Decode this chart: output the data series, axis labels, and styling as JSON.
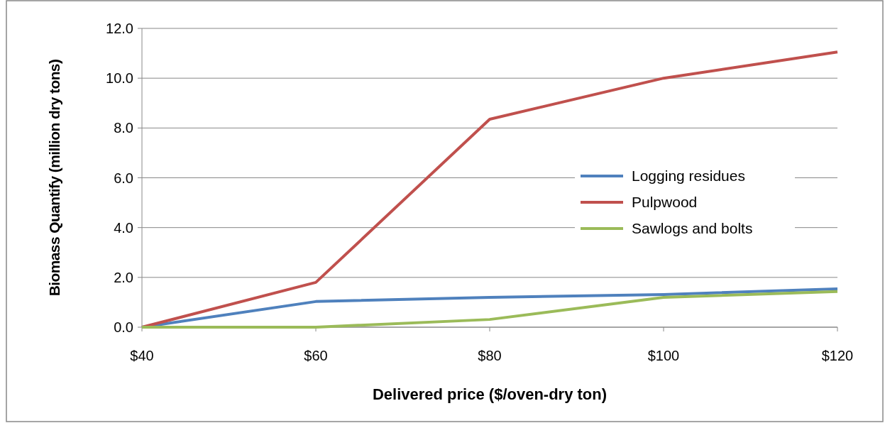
{
  "chart_data": {
    "type": "line",
    "xlabel": "Delivered price ($/oven-dry ton)",
    "ylabel": "Biomass Quantify (million dry tons)",
    "x": [
      40,
      60,
      80,
      100,
      120
    ],
    "series": [
      {
        "name": "Logging residues",
        "color": "#4f81bd",
        "values": [
          0,
          1.03,
          1.2,
          1.31,
          1.54
        ]
      },
      {
        "name": "Pulpwood",
        "color": "#c0504d",
        "values": [
          0,
          1.8,
          8.35,
          10.0,
          11.05
        ]
      },
      {
        "name": "Sawlogs and bolts",
        "color": "#9bbb59",
        "values": [
          0,
          0,
          0.31,
          1.2,
          1.43
        ]
      }
    ],
    "xlim": [
      40,
      120
    ],
    "xticks": [
      {
        "value": 40,
        "label": "$40"
      },
      {
        "value": 60,
        "label": "$60"
      },
      {
        "value": 80,
        "label": "$80"
      },
      {
        "value": 100,
        "label": "$100"
      },
      {
        "value": 120,
        "label": "$120"
      }
    ],
    "ylim": [
      0,
      12
    ],
    "yticks": [
      {
        "value": 0,
        "label": "0.0"
      },
      {
        "value": 2,
        "label": "2.0"
      },
      {
        "value": 4,
        "label": "4.0"
      },
      {
        "value": 6,
        "label": "6.0"
      },
      {
        "value": 8,
        "label": "8.0"
      },
      {
        "value": 10,
        "label": "10.0"
      },
      {
        "value": 12,
        "label": "12.0"
      }
    ],
    "grid": "y",
    "legend": "right",
    "marker": "none",
    "line_style": "solid"
  }
}
